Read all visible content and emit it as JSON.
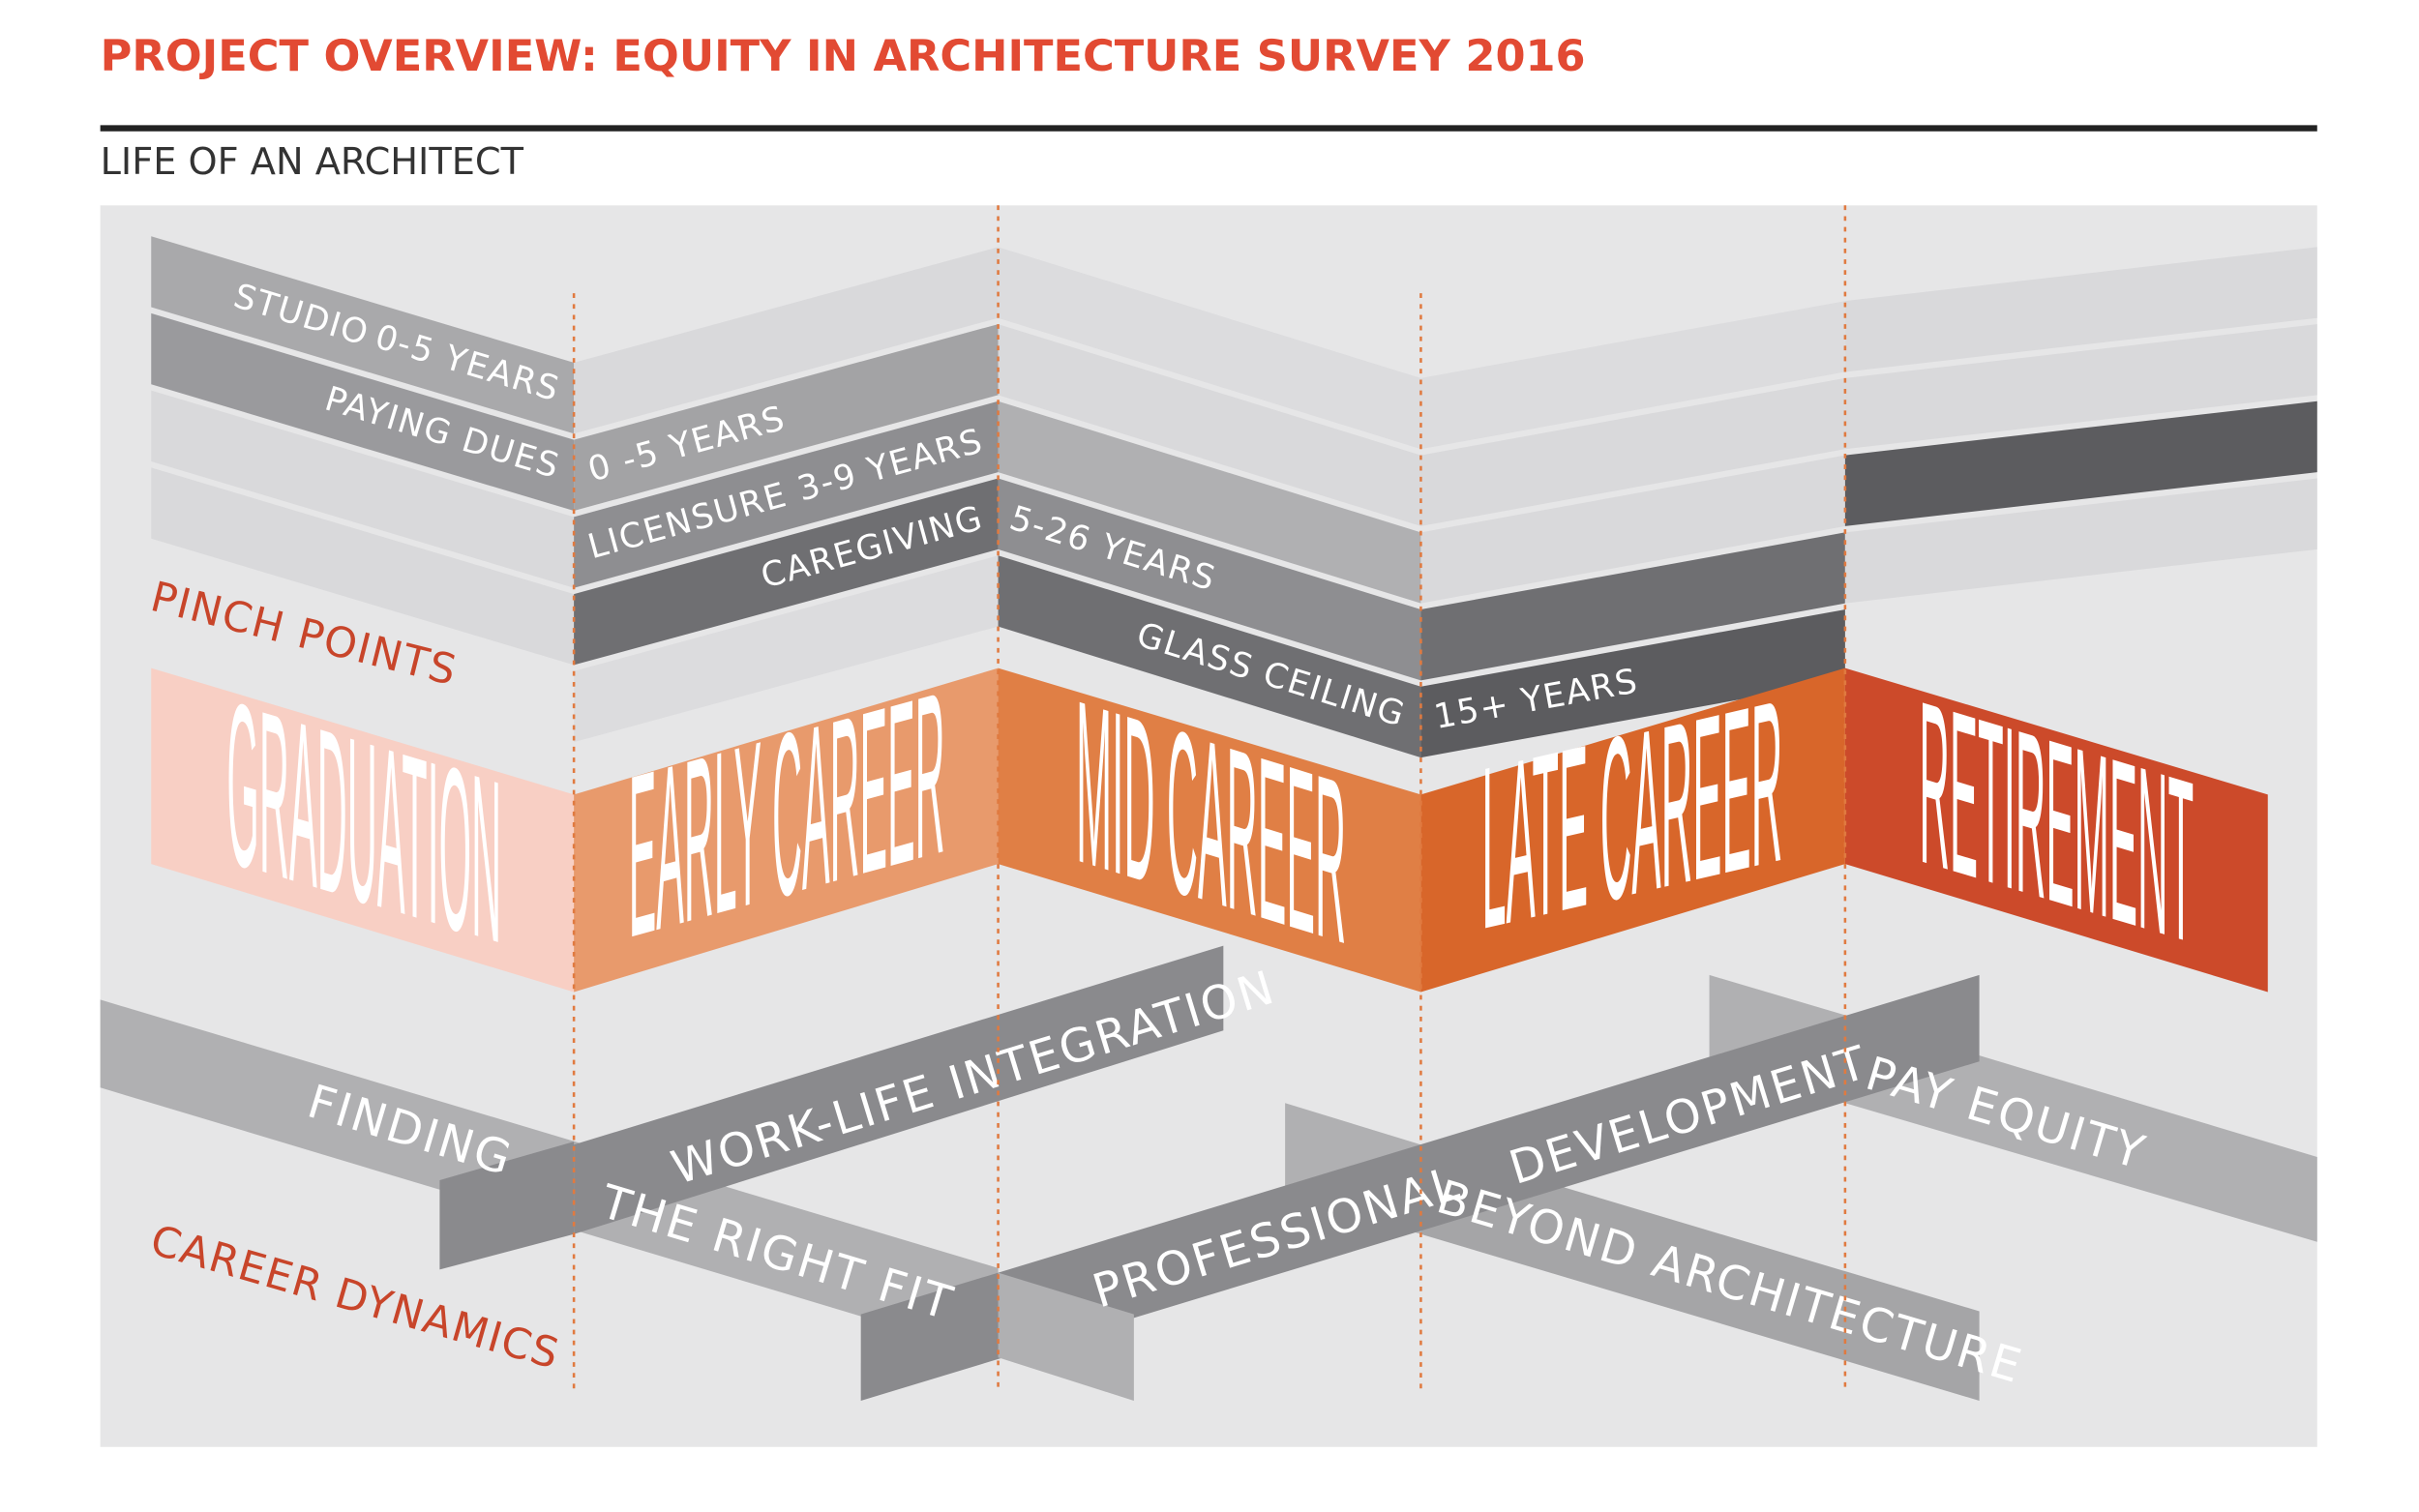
{
  "header": {
    "title": "PROJECT OVERVIEW: EQUITY IN ARCHITECTURE SURVEY 2016",
    "subtitle": "LIFE OF AN ARCHITECT"
  },
  "sections": {
    "pinch_points": "PINCH POINTS",
    "career_dynamics": "CAREER DYNAMICS"
  },
  "stages": [
    "GRADUATION",
    "EARLY CAREER",
    "MID CAREER",
    "LATE CAREER",
    "RETIREMENT"
  ],
  "pinch_labels": [
    "STUDIO",
    "0-5 YEARS",
    "PAYING DUES",
    "0 -5 YEARS",
    "LICENSURE",
    "3-9 YEARS",
    "CAREGIVING",
    "5-26 YEARS",
    "GLASS CEILING",
    "15+ YEARS"
  ],
  "dynamics_labels": [
    "FINDING",
    "THE RIGHT FIT",
    "WORK-LIFE INTEGRATION",
    "PROFESSIONAL",
    "DEVELOPMENT",
    "PAY EQUITY",
    "BEYOND ARCHITECTURE"
  ]
}
